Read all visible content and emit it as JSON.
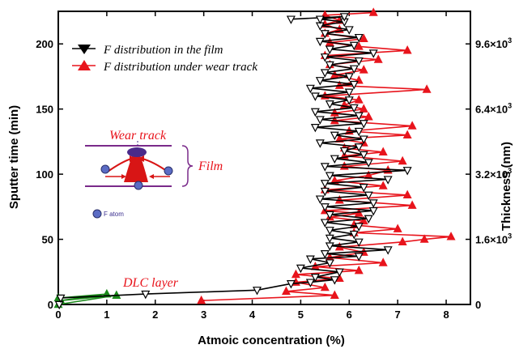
{
  "chart_data": {
    "type": "line",
    "xlabel": "Atmoic concentration (%)",
    "ylabel_left": "Sputter time (min)",
    "ylabel_right": "Thickness (nm)",
    "xlim": [
      0,
      8.5
    ],
    "ylim": [
      0,
      225
    ],
    "x_ticks": [
      0,
      1,
      2,
      3,
      4,
      5,
      6,
      7,
      8
    ],
    "y_ticks": [
      0,
      50,
      100,
      150,
      200
    ],
    "y2_ticks": [
      {
        "value": 0,
        "label": "0"
      },
      {
        "value": 50,
        "label": "1.6×10",
        "exp": "3"
      },
      {
        "value": 100,
        "label": "3.2×10",
        "exp": "3"
      },
      {
        "value": 150,
        "label": "6.4×10",
        "exp": "3"
      },
      {
        "value": 200,
        "label": "9.6×10",
        "exp": "3"
      }
    ],
    "series": [
      {
        "name": "F distribution in the film",
        "color": "#000000",
        "marker": "triangle-down",
        "points": [
          [
            0.02,
            0
          ],
          [
            0.05,
            5
          ],
          [
            1.8,
            8
          ],
          [
            4.1,
            11
          ],
          [
            4.8,
            16
          ],
          [
            5.2,
            17
          ],
          [
            5.7,
            19
          ],
          [
            5.3,
            21
          ],
          [
            5.8,
            25
          ],
          [
            5.0,
            28
          ],
          [
            5.6,
            32
          ],
          [
            5.2,
            35
          ],
          [
            6.2,
            37
          ],
          [
            5.5,
            39
          ],
          [
            6.8,
            42
          ],
          [
            5.6,
            45
          ],
          [
            6.2,
            48
          ],
          [
            5.6,
            51
          ],
          [
            6.1,
            54
          ],
          [
            5.6,
            57
          ],
          [
            6.2,
            60
          ],
          [
            5.5,
            63
          ],
          [
            6.4,
            66
          ],
          [
            5.6,
            69
          ],
          [
            6.5,
            72
          ],
          [
            5.5,
            75
          ],
          [
            6.5,
            78
          ],
          [
            5.4,
            81
          ],
          [
            6.4,
            84
          ],
          [
            5.5,
            87
          ],
          [
            6.3,
            90
          ],
          [
            5.5,
            93
          ],
          [
            6.8,
            96
          ],
          [
            5.6,
            99
          ],
          [
            7.2,
            103
          ],
          [
            5.5,
            106
          ],
          [
            6.4,
            109
          ],
          [
            5.7,
            112
          ],
          [
            6.3,
            115
          ],
          [
            5.9,
            118
          ],
          [
            6.2,
            121
          ],
          [
            5.4,
            124
          ],
          [
            6.3,
            127
          ],
          [
            5.7,
            130
          ],
          [
            6.2,
            133
          ],
          [
            5.3,
            136
          ],
          [
            6.3,
            139
          ],
          [
            5.4,
            142
          ],
          [
            6.2,
            145
          ],
          [
            5.3,
            148
          ],
          [
            6.1,
            151
          ],
          [
            5.6,
            154
          ],
          [
            6.0,
            157
          ],
          [
            5.3,
            160
          ],
          [
            6.0,
            163
          ],
          [
            5.2,
            166
          ],
          [
            6.1,
            169
          ],
          [
            5.4,
            172
          ],
          [
            6.0,
            175
          ],
          [
            5.5,
            178
          ],
          [
            6.1,
            181
          ],
          [
            5.6,
            184
          ],
          [
            6.2,
            187
          ],
          [
            5.5,
            190
          ],
          [
            6.5,
            193
          ],
          [
            5.6,
            196
          ],
          [
            6.1,
            199
          ],
          [
            5.4,
            202
          ],
          [
            6.2,
            205
          ],
          [
            5.5,
            208
          ],
          [
            6.0,
            211
          ],
          [
            5.4,
            214
          ],
          [
            5.9,
            217
          ],
          [
            5.4,
            219
          ],
          [
            5.9,
            221
          ],
          [
            4.8,
            219
          ]
        ]
      },
      {
        "name": "F distribution under wear track",
        "color": "#e8141c",
        "marker": "triangle-up",
        "points": [
          [
            2.95,
            3
          ],
          [
            5.7,
            7
          ],
          [
            4.7,
            10
          ],
          [
            5.5,
            13
          ],
          [
            4.9,
            17
          ],
          [
            5.8,
            20
          ],
          [
            4.9,
            23
          ],
          [
            6.2,
            26
          ],
          [
            5.3,
            29
          ],
          [
            6.7,
            32
          ],
          [
            5.6,
            36
          ],
          [
            6.3,
            40
          ],
          [
            5.8,
            44
          ],
          [
            7.1,
            48
          ],
          [
            7.55,
            50
          ],
          [
            8.1,
            52
          ],
          [
            6.1,
            55
          ],
          [
            7.0,
            58
          ],
          [
            6.1,
            61
          ],
          [
            6.3,
            64
          ],
          [
            5.6,
            67
          ],
          [
            6.2,
            70
          ],
          [
            5.5,
            72
          ],
          [
            7.3,
            76
          ],
          [
            5.8,
            80
          ],
          [
            7.2,
            84
          ],
          [
            5.5,
            88
          ],
          [
            6.7,
            91
          ],
          [
            5.7,
            95
          ],
          [
            6.4,
            99
          ],
          [
            6.8,
            103
          ],
          [
            5.9,
            106
          ],
          [
            7.1,
            110
          ],
          [
            5.9,
            114
          ],
          [
            6.7,
            117
          ],
          [
            5.9,
            120
          ],
          [
            6.3,
            124
          ],
          [
            5.8,
            127
          ],
          [
            7.2,
            130
          ],
          [
            6.0,
            133
          ],
          [
            7.3,
            137
          ],
          [
            5.7,
            141
          ],
          [
            6.4,
            144
          ],
          [
            5.7,
            147
          ],
          [
            6.3,
            150
          ],
          [
            5.9,
            153
          ],
          [
            6.2,
            157
          ],
          [
            5.5,
            160
          ],
          [
            7.6,
            165
          ],
          [
            5.8,
            168
          ],
          [
            6.2,
            172
          ],
          [
            5.7,
            176
          ],
          [
            6.3,
            180
          ],
          [
            5.6,
            184
          ],
          [
            6.6,
            188
          ],
          [
            5.5,
            191
          ],
          [
            7.2,
            195
          ],
          [
            6.2,
            198
          ],
          [
            5.6,
            201
          ],
          [
            6.3,
            204
          ],
          [
            5.5,
            208
          ],
          [
            5.8,
            211
          ],
          [
            5.5,
            215
          ],
          [
            5.8,
            218
          ],
          [
            5.5,
            222
          ],
          [
            6.5,
            224
          ]
        ]
      },
      {
        "name": "DLC layer",
        "color": "#1a8a1a",
        "marker": "triangle-up",
        "points": [
          [
            0.0,
            0
          ],
          [
            1.2,
            7
          ],
          [
            0.05,
            3
          ],
          [
            1.0,
            8
          ],
          [
            0.0,
            5
          ]
        ]
      }
    ],
    "legend": {
      "position": "top-left",
      "entries": [
        "F distribution in the film",
        "F distribution under wear track"
      ]
    },
    "annotations": {
      "dlc_layer": "DLC layer",
      "wear_track": "Wear track",
      "film": "Film",
      "f_atom": "F atom"
    }
  }
}
